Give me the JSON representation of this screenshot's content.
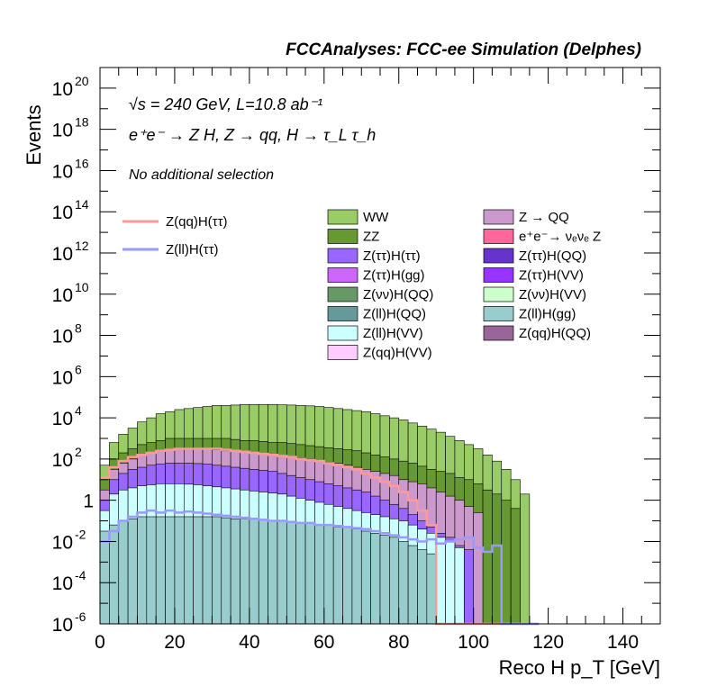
{
  "chart_data": {
    "type": "area",
    "title": "FCCAnalyses: FCC-ee Simulation (Delphes)",
    "annotations": [
      "√s = 240 GeV, L=10.8 ab⁻¹",
      "e⁺e⁻ → Z H, Z → qq, H → τ_L τ_h",
      "No additional selection"
    ],
    "xlabel": "Reco H p_T [GeV]",
    "ylabel": "Events",
    "xlim": [
      0,
      150
    ],
    "ylim": [
      1e-06,
      1e+21
    ],
    "yscale": "log",
    "x_ticks": [
      0,
      20,
      40,
      60,
      80,
      100,
      120,
      140
    ],
    "y_tick_exponents": [
      -6,
      -4,
      -2,
      0,
      2,
      4,
      6,
      8,
      10,
      12,
      14,
      16,
      18,
      20
    ],
    "y_ticks_plain": {
      "0": "1",
      "2": "10",
      "4": "10",
      "6": "10",
      "8": "10",
      "10": "10",
      "12": "10",
      "14": "10",
      "16": "10",
      "18": "10",
      "20": "10"
    },
    "grid": false,
    "legend_placement": "center",
    "stacked_series": [
      {
        "name": "WW",
        "color": "#99cc66"
      },
      {
        "name": "ZZ",
        "color": "#669933"
      },
      {
        "name": "Z → QQ",
        "color": "#cc99cc"
      },
      {
        "name": "e⁺e⁻→ νₑνₑ Z",
        "color": "#ff6699"
      },
      {
        "name": "Z(ττ)H(ττ)",
        "color": "#9966ff"
      },
      {
        "name": "Z(ττ)H(QQ)",
        "color": "#6633cc"
      },
      {
        "name": "Z(ττ)H(gg)",
        "color": "#cc66ff"
      },
      {
        "name": "Z(ττ)H(VV)",
        "color": "#9933ff"
      },
      {
        "name": "Z(νν)H(QQ)",
        "color": "#669966"
      },
      {
        "name": "Z(νν)H(VV)",
        "color": "#ccffcc"
      },
      {
        "name": "Z(ll)H(QQ)",
        "color": "#669999"
      },
      {
        "name": "Z(ll)H(gg)",
        "color": "#99cccc"
      },
      {
        "name": "Z(ll)H(VV)",
        "color": "#ccffff"
      },
      {
        "name": "Z(qq)H(QQ)",
        "color": "#996699"
      },
      {
        "name": "Z(qq)H(VV)",
        "color": "#ffccff"
      }
    ],
    "signal_series": [
      {
        "name": "Z(qq)H(ττ)",
        "color": "#ff9999"
      },
      {
        "name": "Z(ll)H(ττ)",
        "color": "#9999ff"
      }
    ],
    "bin_width": 2.5,
    "bin_starts": [
      0,
      2.5,
      5,
      7.5,
      10,
      12.5,
      15,
      17.5,
      20,
      22.5,
      25,
      27.5,
      30,
      32.5,
      35,
      37.5,
      40,
      42.5,
      45,
      47.5,
      50,
      52.5,
      55,
      57.5,
      60,
      62.5,
      65,
      67.5,
      70,
      72.5,
      75,
      77.5,
      80,
      82.5,
      85,
      87.5,
      90,
      92.5,
      95,
      97.5,
      100,
      102.5,
      105,
      107.5,
      110,
      112.5,
      115
    ],
    "total_log10": [
      1.7,
      2.8,
      3.2,
      3.5,
      3.8,
      4.0,
      4.2,
      4.3,
      4.4,
      4.45,
      4.5,
      4.55,
      4.6,
      4.6,
      4.62,
      4.65,
      4.65,
      4.65,
      4.65,
      4.63,
      4.62,
      4.6,
      4.58,
      4.55,
      4.5,
      4.45,
      4.4,
      4.35,
      4.3,
      4.2,
      4.1,
      4.0,
      3.9,
      3.75,
      3.6,
      3.45,
      3.3,
      3.1,
      2.9,
      2.7,
      2.5,
      2.2,
      1.9,
      1.5,
      1.0,
      0.3,
      -6
    ],
    "zz_log10": [
      1.0,
      2.0,
      2.3,
      2.5,
      2.7,
      2.8,
      2.9,
      3.0,
      3.0,
      3.0,
      3.0,
      3.0,
      3.0,
      3.0,
      2.95,
      2.9,
      2.9,
      2.85,
      2.8,
      2.8,
      2.75,
      2.7,
      2.65,
      2.6,
      2.55,
      2.5,
      2.45,
      2.4,
      2.3,
      2.2,
      2.1,
      2.0,
      1.9,
      1.8,
      1.65,
      1.5,
      1.4,
      1.3,
      1.1,
      1.0,
      0.8,
      0.5,
      0.3,
      0.0,
      -0.4,
      -6,
      -6
    ],
    "zqq_log10": [
      0.5,
      1.5,
      1.8,
      2.0,
      2.2,
      2.3,
      2.4,
      2.45,
      2.5,
      2.5,
      2.5,
      2.5,
      2.45,
      2.4,
      2.4,
      2.35,
      2.3,
      2.25,
      2.2,
      2.15,
      2.1,
      2.05,
      2.0,
      1.9,
      1.85,
      1.8,
      1.7,
      1.6,
      1.5,
      1.4,
      1.3,
      1.2,
      1.0,
      0.9,
      0.8,
      0.6,
      0.4,
      0.2,
      0.0,
      -0.3,
      -0.6,
      -6,
      -6,
      -6,
      -6,
      -6,
      -6
    ],
    "purple_log10": [
      0.0,
      1.0,
      1.3,
      1.5,
      1.6,
      1.7,
      1.75,
      1.8,
      1.8,
      1.8,
      1.78,
      1.75,
      1.7,
      1.65,
      1.6,
      1.55,
      1.5,
      1.45,
      1.4,
      1.3,
      1.2,
      1.1,
      1.0,
      0.9,
      0.8,
      0.7,
      0.6,
      0.5,
      0.4,
      0.2,
      0.0,
      -0.2,
      -0.4,
      -0.7,
      -1.0,
      -1.3,
      -1.6,
      -1.8,
      -2.2,
      -2.4,
      -6,
      -6,
      -6,
      -6,
      -6,
      -6,
      -6
    ],
    "lightcyan_log10": [
      -0.5,
      0.3,
      0.5,
      0.6,
      0.7,
      0.75,
      0.8,
      0.8,
      0.8,
      0.78,
      0.75,
      0.7,
      0.65,
      0.6,
      0.55,
      0.5,
      0.45,
      0.4,
      0.35,
      0.3,
      0.2,
      0.1,
      0.0,
      -0.1,
      -0.2,
      -0.3,
      -0.4,
      -0.5,
      -0.6,
      -0.7,
      -0.8,
      -0.9,
      -1.0,
      -1.2,
      -1.4,
      -1.6,
      -1.8,
      -2.0,
      -2.3,
      -6,
      -6,
      -6,
      -6,
      -6,
      -6,
      -6,
      -6
    ],
    "teal_log10": [
      -1.5,
      -1.2,
      -1.0,
      -0.9,
      -0.8,
      -0.8,
      -0.8,
      -0.8,
      -0.8,
      -0.8,
      -0.8,
      -0.8,
      -0.8,
      -0.85,
      -0.9,
      -0.9,
      -0.9,
      -0.95,
      -1.0,
      -1.0,
      -1.05,
      -1.1,
      -1.1,
      -1.2,
      -1.2,
      -1.3,
      -1.3,
      -1.4,
      -1.5,
      -1.6,
      -1.7,
      -1.8,
      -2.0,
      -2.2,
      -2.4,
      -2.6,
      -6,
      -6,
      -6,
      -6,
      -6,
      -6,
      -6,
      -6,
      -6,
      -6,
      -6
    ],
    "zqqhtautau_log10": [
      1.1,
      1.6,
      1.9,
      2.1,
      2.2,
      2.3,
      2.4,
      2.45,
      2.5,
      2.5,
      2.5,
      2.5,
      2.5,
      2.45,
      2.4,
      2.35,
      2.3,
      2.25,
      2.2,
      2.15,
      2.1,
      2.0,
      1.95,
      1.9,
      1.8,
      1.7,
      1.6,
      1.5,
      1.3,
      1.1,
      0.9,
      0.7,
      0.4,
      0.0,
      -0.5,
      -1.2,
      -6,
      -6,
      -6,
      -6,
      -6,
      -6,
      -6,
      -6,
      -6,
      -6,
      -6
    ],
    "zllhtautau_log10": [
      -2.0,
      -1.5,
      -1.0,
      -0.8,
      -0.6,
      -0.5,
      -0.6,
      -0.5,
      -0.6,
      -0.55,
      -0.6,
      -0.65,
      -0.7,
      -0.75,
      -0.8,
      -0.85,
      -0.9,
      -0.95,
      -1.0,
      -1.0,
      -1.05,
      -1.1,
      -1.1,
      -1.2,
      -1.2,
      -1.25,
      -1.3,
      -1.35,
      -1.4,
      -1.5,
      -1.6,
      -1.7,
      -1.8,
      -1.9,
      -2.0,
      -1.9,
      -2.1,
      -2.0,
      -1.9,
      -1.8,
      -2.3,
      -2.5,
      -2.2,
      -6,
      -6,
      -6,
      -6
    ]
  }
}
